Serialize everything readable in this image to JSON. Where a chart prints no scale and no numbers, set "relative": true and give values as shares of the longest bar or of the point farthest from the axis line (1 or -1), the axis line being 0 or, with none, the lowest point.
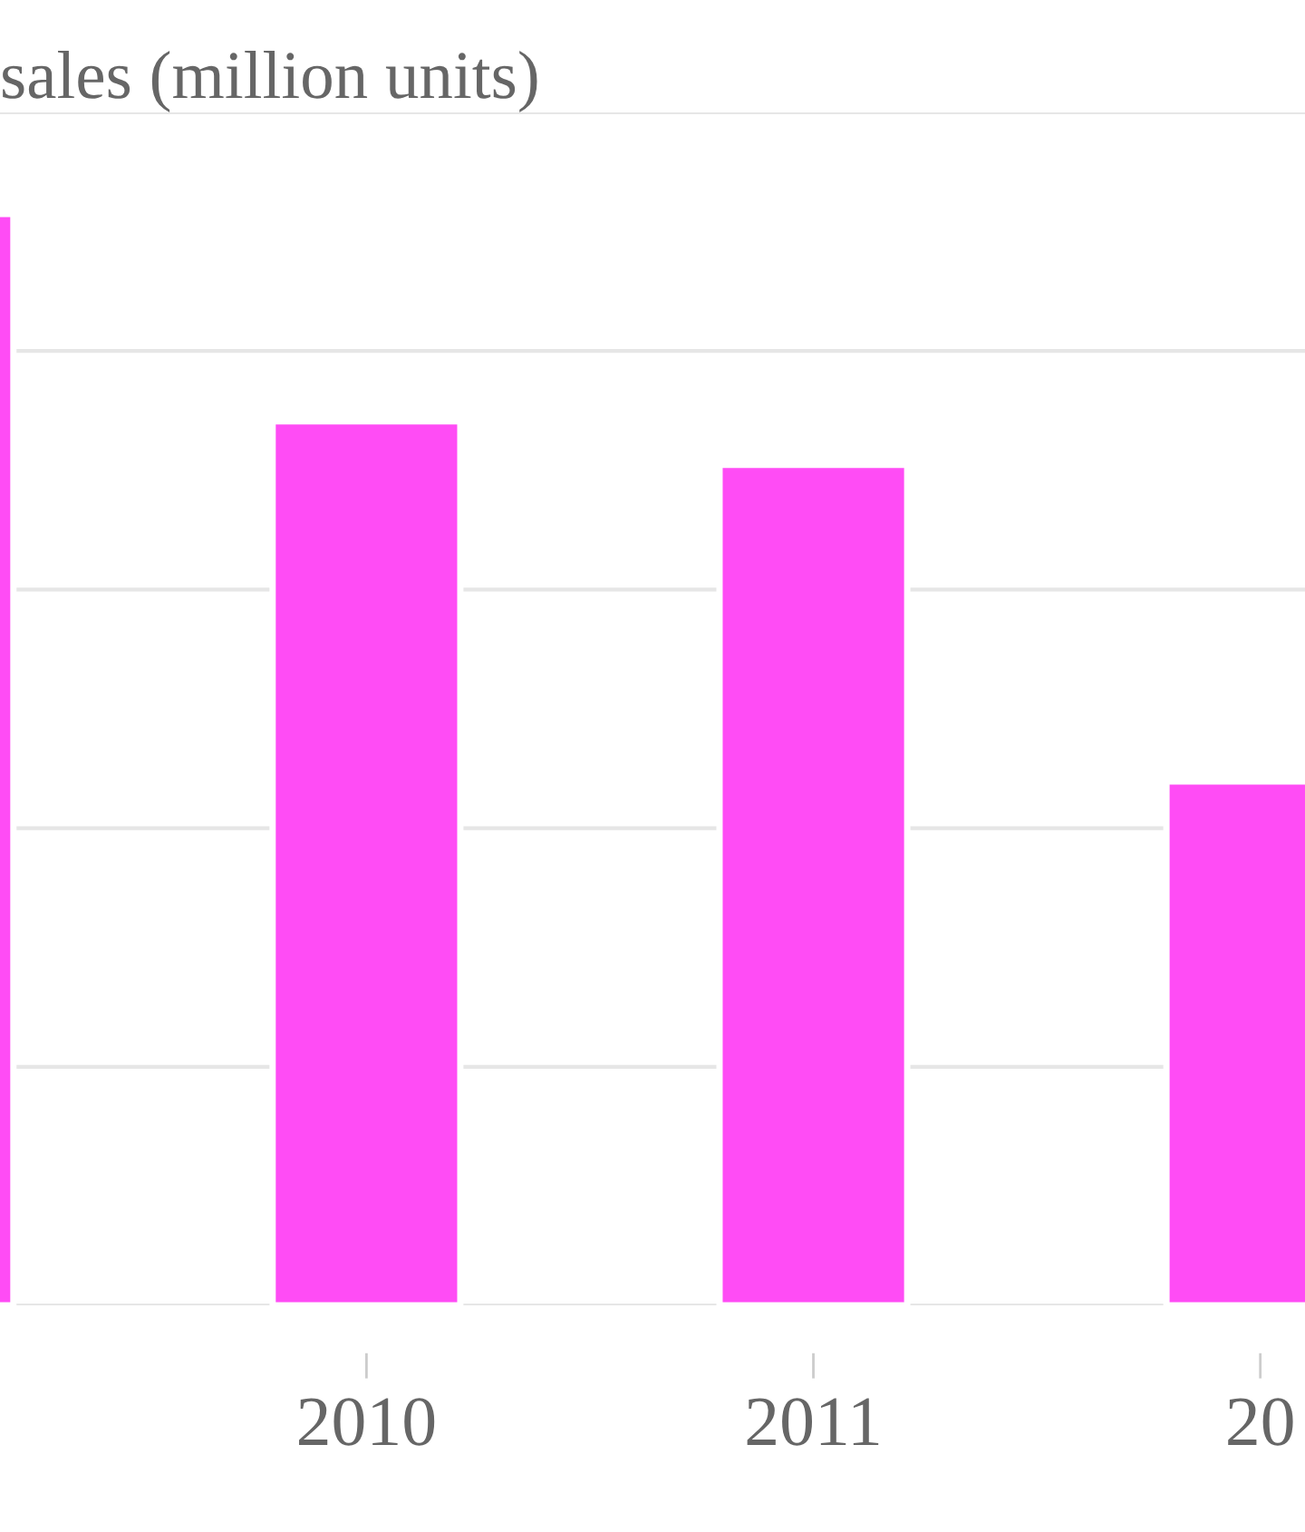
{
  "chart_data": {
    "type": "bar",
    "title": "sales (million units)",
    "categories": [
      null,
      "2010",
      "2011",
      "20"
    ],
    "values": [
      1,
      0.81,
      0.77,
      0.48
    ],
    "color": "#ff4cf5",
    "relative": true,
    "grid": "y",
    "tick_labels": "x"
  }
}
